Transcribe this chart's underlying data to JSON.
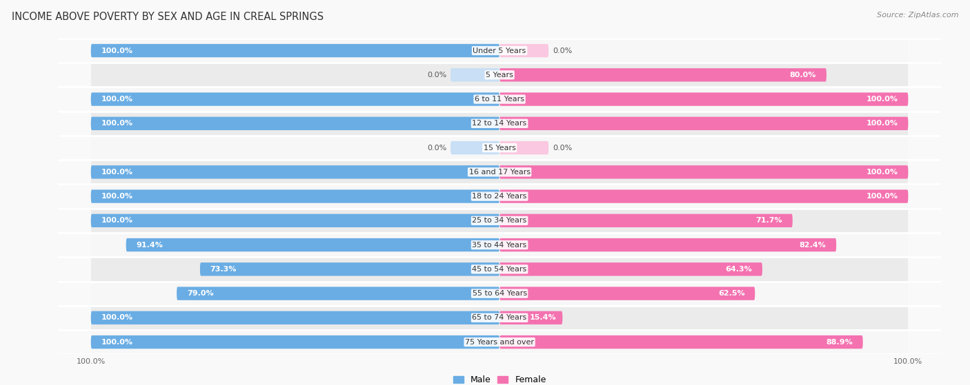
{
  "title": "INCOME ABOVE POVERTY BY SEX AND AGE IN CREAL SPRINGS",
  "source": "Source: ZipAtlas.com",
  "categories": [
    "Under 5 Years",
    "5 Years",
    "6 to 11 Years",
    "12 to 14 Years",
    "15 Years",
    "16 and 17 Years",
    "18 to 24 Years",
    "25 to 34 Years",
    "35 to 44 Years",
    "45 to 54 Years",
    "55 to 64 Years",
    "65 to 74 Years",
    "75 Years and over"
  ],
  "male": [
    100.0,
    0.0,
    100.0,
    100.0,
    0.0,
    100.0,
    100.0,
    100.0,
    91.4,
    73.3,
    79.0,
    100.0,
    100.0
  ],
  "female": [
    0.0,
    80.0,
    100.0,
    100.0,
    0.0,
    100.0,
    100.0,
    71.7,
    82.4,
    64.3,
    62.5,
    15.4,
    88.9
  ],
  "male_color": "#6aade4",
  "female_color": "#f472b0",
  "male_zero_color": "#c8dff5",
  "female_zero_color": "#fac8e0",
  "male_label": "Male",
  "female_label": "Female",
  "row_colors": [
    "#f7f7f7",
    "#ebebeb"
  ],
  "title_fontsize": 10.5,
  "label_fontsize": 8.0,
  "source_fontsize": 8,
  "bar_height": 0.55,
  "max_val": 100.0,
  "zero_stub": 12.0
}
